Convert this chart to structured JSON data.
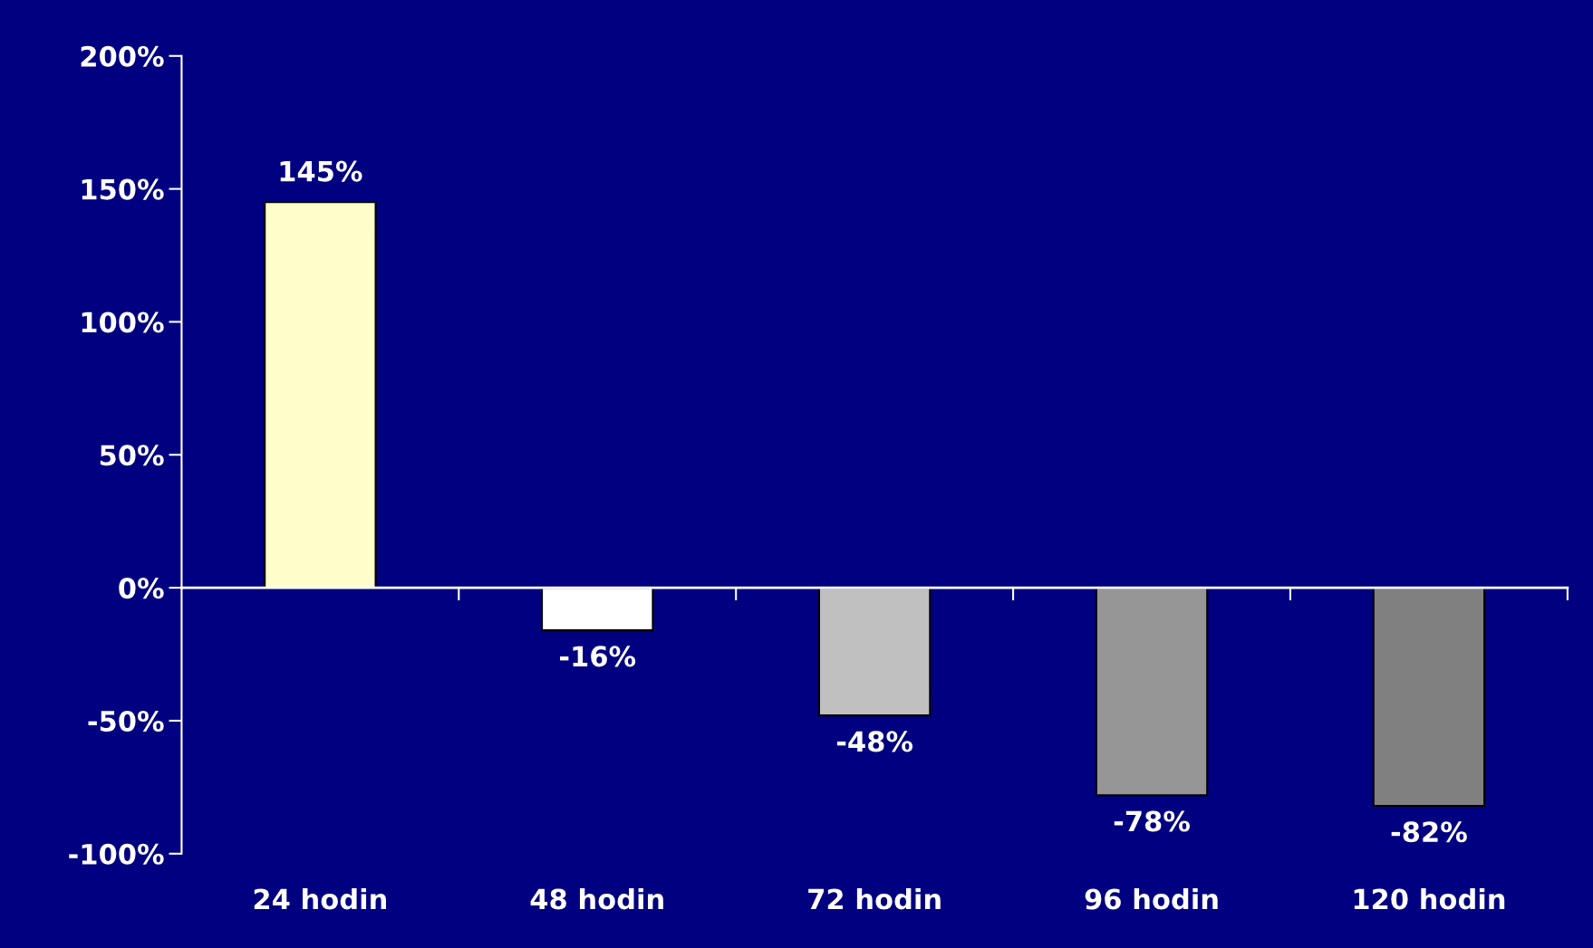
{
  "chart_data": {
    "type": "bar",
    "categories": [
      "24 hodin",
      "48 hodin",
      "72 hodin",
      "96 hodin",
      "120 hodin"
    ],
    "values": [
      145,
      -16,
      -48,
      -78,
      -82
    ],
    "colors": [
      "#ffffcc",
      "#ffffff",
      "#c0c0c0",
      "#969696",
      "#808080"
    ],
    "value_labels": [
      "145%",
      "-16%",
      "-48%",
      "-78%",
      "-82%"
    ],
    "ylim": [
      -100,
      200
    ],
    "yticks": [
      {
        "value": -100,
        "label": "-100%"
      },
      {
        "value": -50,
        "label": "-50%"
      },
      {
        "value": 0,
        "label": "0%"
      },
      {
        "value": 50,
        "label": "50%"
      },
      {
        "value": 100,
        "label": "100%"
      },
      {
        "value": 150,
        "label": "150%"
      },
      {
        "value": 200,
        "label": "200%"
      }
    ],
    "legend": false
  }
}
